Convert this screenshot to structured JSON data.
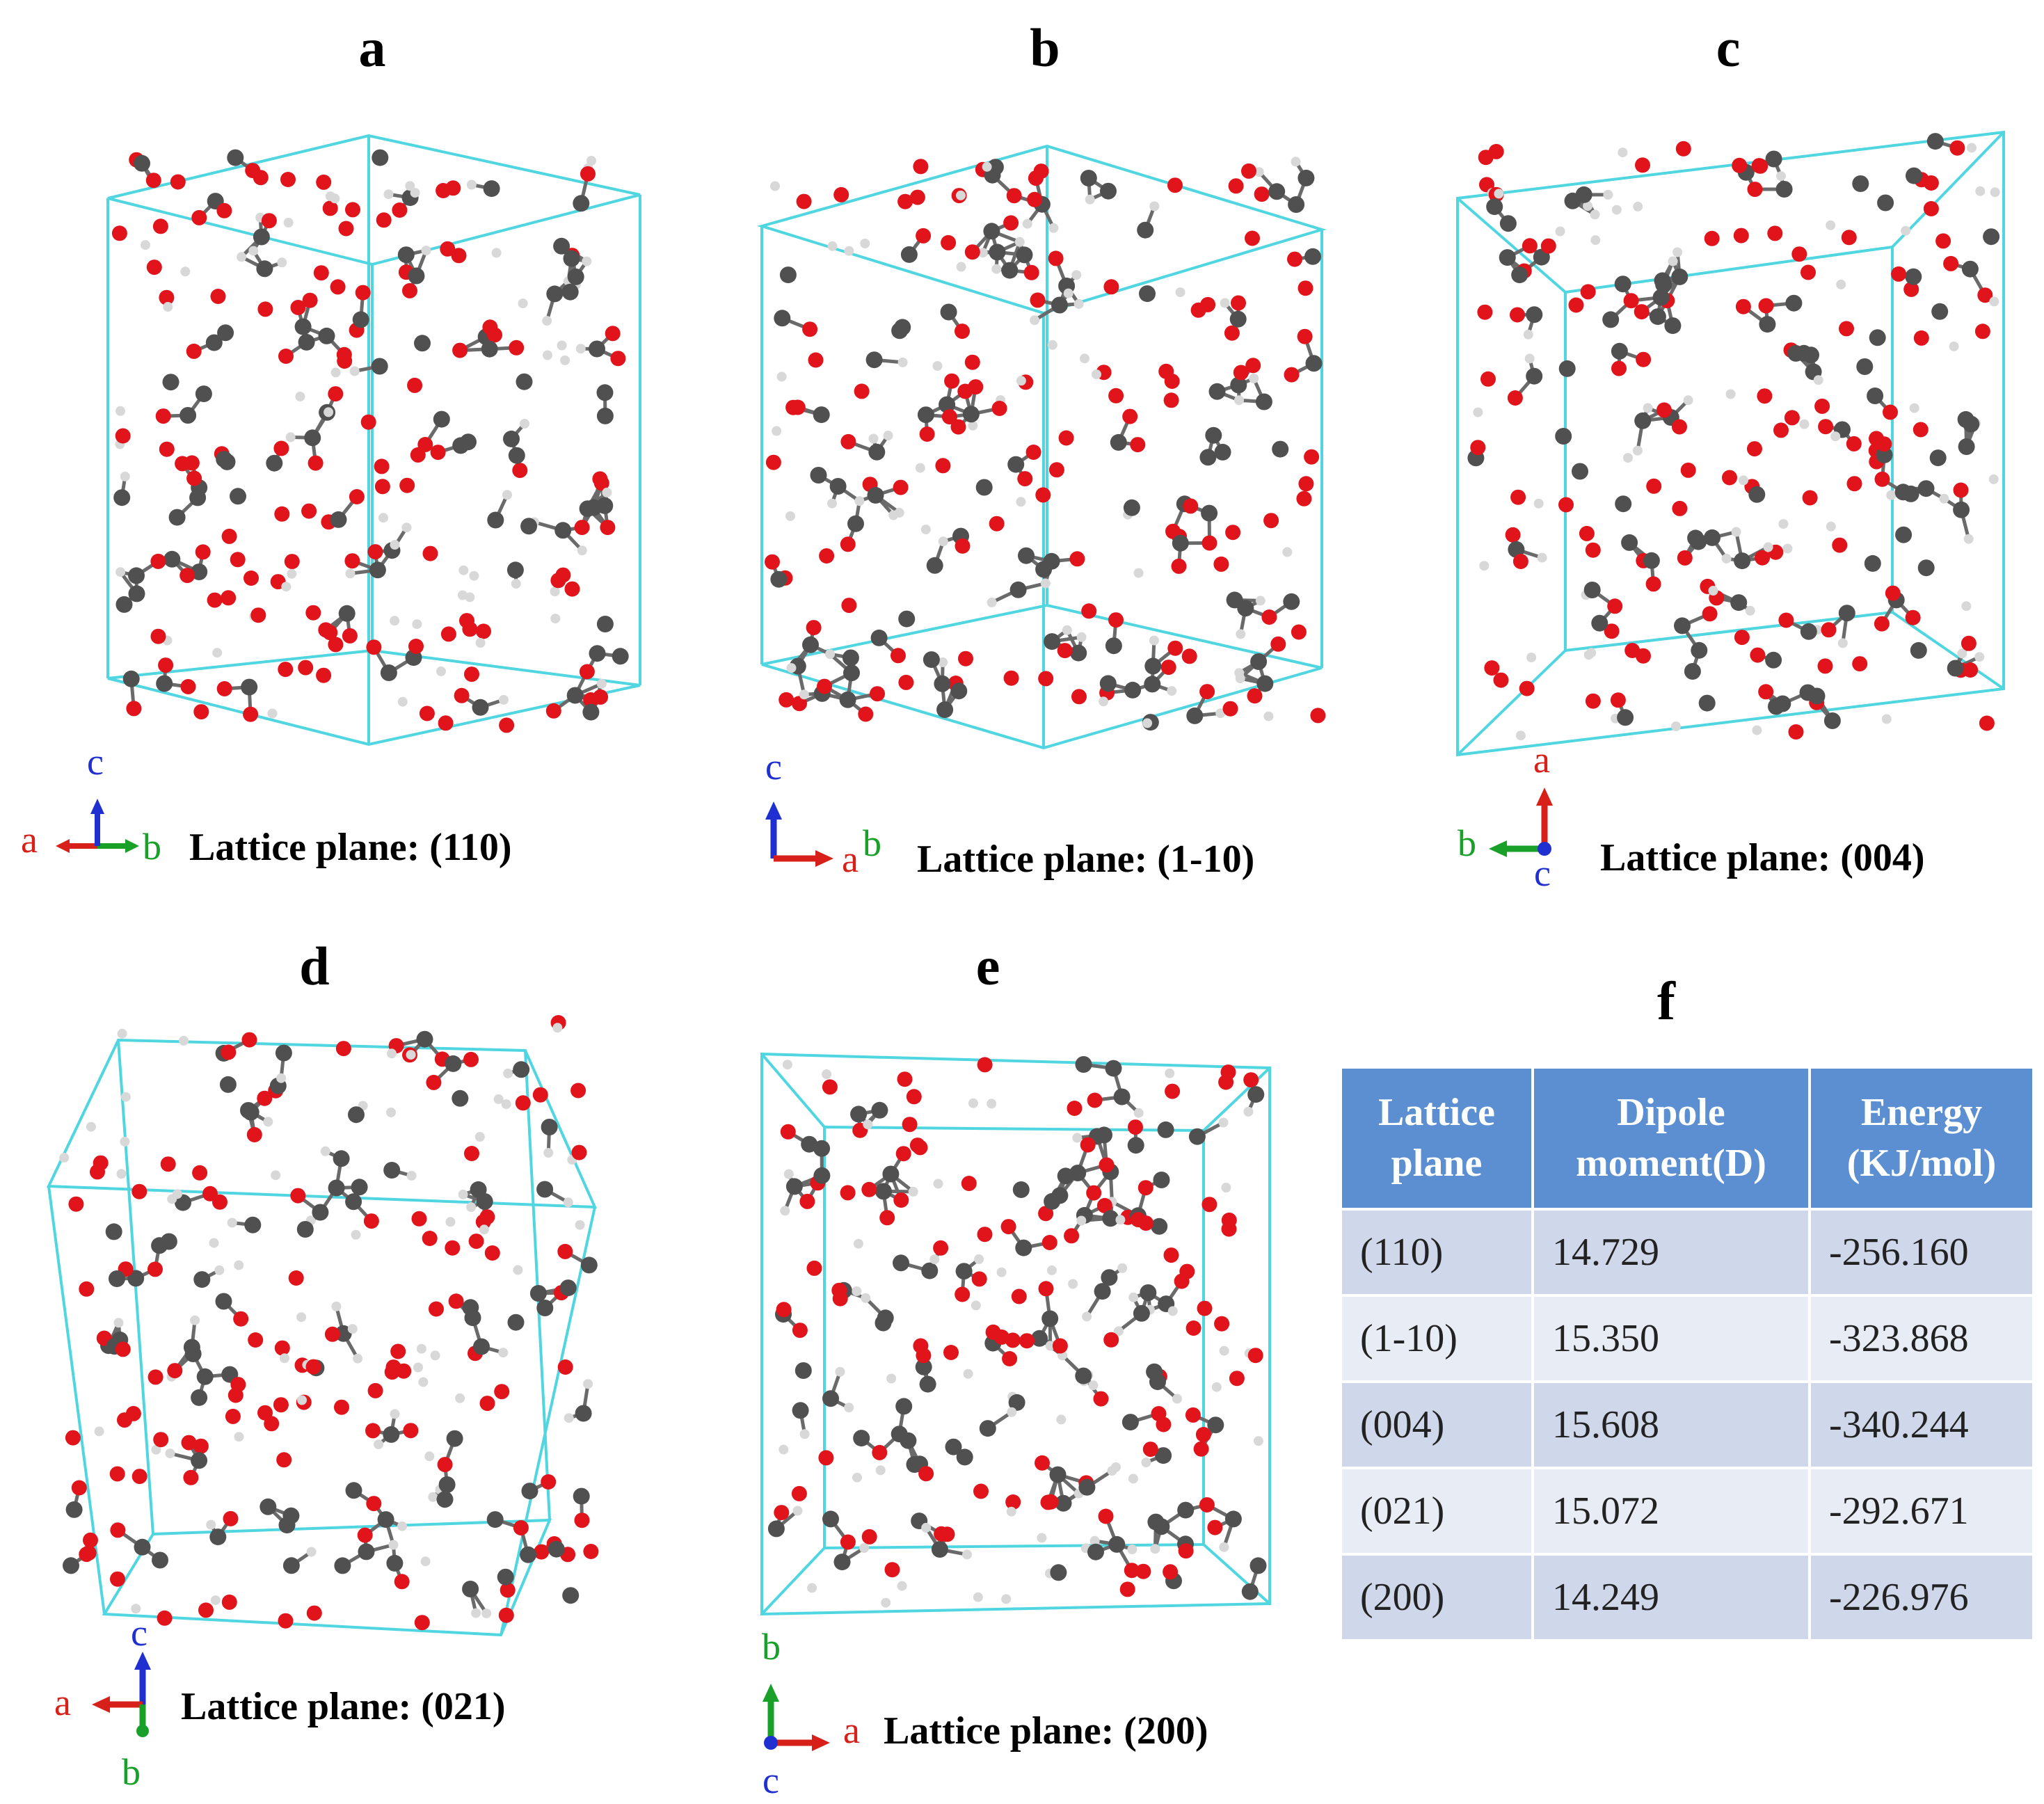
{
  "panels": {
    "a": {
      "letter": "a",
      "caption": "Lattice plane: (110)",
      "axes": {
        "left": "a",
        "right": "b",
        "up": "c"
      }
    },
    "b": {
      "letter": "b",
      "caption": "Lattice plane: (1-10)",
      "axes": {
        "right": "a",
        "right2": "b",
        "up": "c"
      }
    },
    "c": {
      "letter": "c",
      "caption": "Lattice plane: (004)",
      "axes": {
        "left": "b",
        "up": "a",
        "down": "c"
      }
    },
    "d": {
      "letter": "d",
      "caption": "Lattice plane: (021)",
      "axes": {
        "left": "a",
        "up": "c",
        "down": "b"
      }
    },
    "e": {
      "letter": "e",
      "caption": "Lattice plane: (200)",
      "axes": {
        "up": "b",
        "right": "a",
        "down": "c"
      }
    },
    "f": {
      "letter": "f"
    }
  },
  "table": {
    "headers": [
      "Lattice plane",
      "Dipole moment(D)",
      "Energy (KJ/mol)"
    ],
    "rows": [
      [
        "(110)",
        "14.729",
        "-256.160"
      ],
      [
        "(1-10)",
        "15.350",
        "-323.868"
      ],
      [
        "(004)",
        "15.608",
        "-340.244"
      ],
      [
        "(021)",
        "15.072",
        "-292.671"
      ],
      [
        "(200)",
        "14.249",
        "-226.976"
      ]
    ]
  },
  "colors": {
    "cell_edge": "#4fd6e0",
    "oxygen": "#e0141a",
    "carbon": "#505050",
    "hydrogen": "#d8d8d8",
    "table_header": "#5b8fd1"
  }
}
